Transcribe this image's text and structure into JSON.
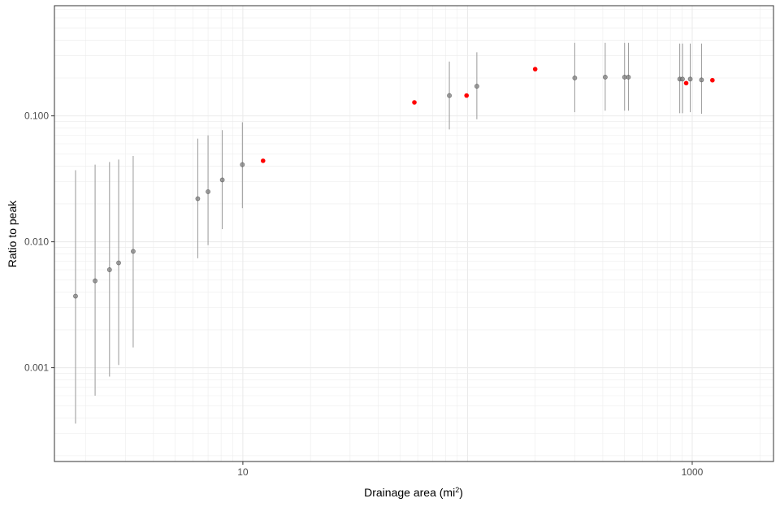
{
  "chart_data": {
    "type": "scatter",
    "title": "",
    "xlabel": "Drainage area (mi",
    "xlabel_superscript": "2",
    "xlabel_suffix": ")",
    "ylabel": "Ratio to peak",
    "x_scale": "log10",
    "y_scale": "log10",
    "xlim": [
      1.45,
      2300
    ],
    "ylim": [
      0.00018,
      0.75
    ],
    "x_ticks": [
      10,
      1000
    ],
    "x_tick_labels": [
      "10",
      "1000"
    ],
    "y_ticks": [
      0.001,
      0.01,
      0.1
    ],
    "y_tick_labels": [
      "0.001",
      "0.010",
      "0.100"
    ],
    "grid": true,
    "legend": "none",
    "colors": {
      "points_with_range": "#808080",
      "points_red": "#ff0000",
      "range_line": "#999999",
      "grid": "#ebebeb",
      "panel_border": "#333333"
    },
    "series": [
      {
        "marker": "gray-with-range",
        "points": [
          {
            "x": 1.8,
            "y": 0.0037,
            "ymin": 0.00036,
            "ymax": 0.037
          },
          {
            "x": 2.2,
            "y": 0.0049,
            "ymin": 0.0006,
            "ymax": 0.041
          },
          {
            "x": 2.55,
            "y": 0.006,
            "ymin": 0.00085,
            "ymax": 0.043
          },
          {
            "x": 2.8,
            "y": 0.0068,
            "ymin": 0.00105,
            "ymax": 0.045
          },
          {
            "x": 3.25,
            "y": 0.0084,
            "ymin": 0.00145,
            "ymax": 0.048
          },
          {
            "x": 6.3,
            "y": 0.022,
            "ymin": 0.0074,
            "ymax": 0.066
          },
          {
            "x": 7.0,
            "y": 0.025,
            "ymin": 0.0094,
            "ymax": 0.07
          },
          {
            "x": 8.1,
            "y": 0.031,
            "ymin": 0.0126,
            "ymax": 0.077
          },
          {
            "x": 9.95,
            "y": 0.041,
            "ymin": 0.0185,
            "ymax": 0.089
          },
          {
            "x": 83,
            "y": 0.145,
            "ymin": 0.078,
            "ymax": 0.27
          },
          {
            "x": 110,
            "y": 0.172,
            "ymin": 0.094,
            "ymax": 0.32
          },
          {
            "x": 300,
            "y": 0.2,
            "ymin": 0.107,
            "ymax": 0.38
          },
          {
            "x": 410,
            "y": 0.203,
            "ymin": 0.11,
            "ymax": 0.38
          },
          {
            "x": 500,
            "y": 0.203,
            "ymin": 0.11,
            "ymax": 0.38
          },
          {
            "x": 520,
            "y": 0.203,
            "ymin": 0.11,
            "ymax": 0.38
          },
          {
            "x": 880,
            "y": 0.196,
            "ymin": 0.105,
            "ymax": 0.375
          },
          {
            "x": 905,
            "y": 0.196,
            "ymin": 0.105,
            "ymax": 0.375
          },
          {
            "x": 980,
            "y": 0.196,
            "ymin": 0.107,
            "ymax": 0.375
          },
          {
            "x": 1100,
            "y": 0.193,
            "ymin": 0.104,
            "ymax": 0.375
          }
        ]
      },
      {
        "marker": "red",
        "points": [
          {
            "x": 12.3,
            "y": 0.044
          },
          {
            "x": 58,
            "y": 0.128
          },
          {
            "x": 99,
            "y": 0.145
          },
          {
            "x": 200,
            "y": 0.235
          },
          {
            "x": 940,
            "y": 0.182
          },
          {
            "x": 1230,
            "y": 0.192
          }
        ]
      }
    ]
  }
}
